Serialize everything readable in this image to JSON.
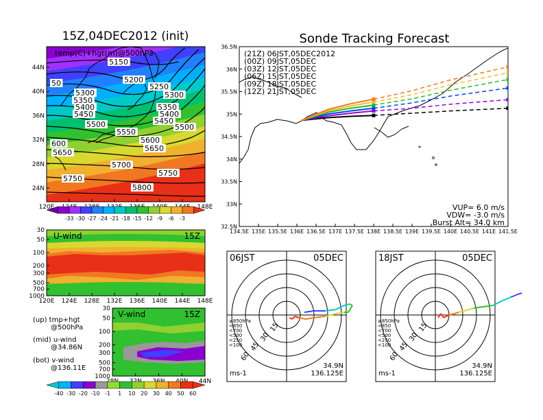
{
  "colors": {
    "shade": [
      "#6a00a8",
      "#8a00d0",
      "#a030ff",
      "#4040ff",
      "#2080ff",
      "#00b0ff",
      "#00c8c8",
      "#00c070",
      "#30c030",
      "#90d030",
      "#d8d830",
      "#f0b030",
      "#f07820",
      "#e83018"
    ],
    "wind_shade": [
      "#00c8c8",
      "#00b0ff",
      "#4040ff",
      "#8a00d0",
      "#999999",
      "#8fdc30",
      "#30c030",
      "#90d030",
      "#d8d830",
      "#f0b030",
      "#f07820",
      "#e83018"
    ],
    "tracks": {
      "21Z": "#000000",
      "00Z": "#9900cc",
      "03Z": "#0044ff",
      "06Z": "#22bb22",
      "09Z": "#f0c020",
      "12Z": "#f07820"
    }
  },
  "panels": {
    "init_title": "15Z,04DEC2012 (init)",
    "map_label": "temp(C)+hgt(m)@500hPa",
    "u_label": "U-wind",
    "u_time": "15Z",
    "v_label": "V-wind",
    "v_time": "15Z",
    "forecast_title": "Sonde Tracking Forecast",
    "legend_title": "(21Z) 06JST,05DEC2012",
    "legend_rows": [
      {
        "key": "00Z",
        "text": "(00Z) 09JST,05DEC"
      },
      {
        "key": "03Z",
        "text": "(03Z) 12JST,05DEC"
      },
      {
        "key": "06Z",
        "text": "(06Z) 15JST,05DEC"
      },
      {
        "key": "09Z",
        "text": "(09Z) 18JST,05DEC"
      },
      {
        "key": "12Z",
        "text": "(12Z) 21JST,05DEC"
      }
    ],
    "vup": "VUP= 6.0 m/s",
    "vdw": "VDW= -3.0 m/s",
    "burst": "Burst Alt= 34.0 km",
    "notes": [
      "(up) tmp+hgt",
      "@500hPa",
      "(mid) u-wind",
      "@34.86N",
      "(bot) v-wind",
      "@136.11E"
    ],
    "hodo_left": {
      "time": "06JST",
      "date": "05DEC",
      "lat": "34.9N",
      "lon": "136.125E",
      "unit": "ms-1"
    },
    "hodo_right": {
      "time": "18JST",
      "date": "05DEC",
      "lat": "34.9N",
      "lon": "136.125E",
      "unit": "ms-1"
    },
    "hodo_legend": [
      "≥850hPa",
      "<850",
      "<700",
      "<500",
      "<250",
      "<100"
    ],
    "ring_labels": [
      "15",
      "30",
      "45",
      "60"
    ]
  },
  "chart_data": [
    {
      "type": "heatmap",
      "title": "15Z,04DEC2012 (init)",
      "subtitle": "temp(C)+hgt(m)@500hPa",
      "x_ticks": [
        "120E",
        "124E",
        "128E",
        "132E",
        "136E",
        "140E",
        "144E",
        "148E"
      ],
      "y_ticks": [
        "24N",
        "28N",
        "32N",
        "36N",
        "40N",
        "44N"
      ],
      "colorbar_ticks": [
        "-33",
        "-30",
        "-27",
        "-24",
        "-21",
        "-18",
        "-15",
        "-12",
        "-9",
        "-6",
        "-3"
      ],
      "contour_labels": [
        "5150",
        "5200",
        "50",
        "5250",
        "5300",
        "5300",
        "5350",
        "5350",
        "5400",
        "5400",
        "5450",
        "5450",
        "5500",
        "5500",
        "5550",
        "5600",
        "600",
        "5650",
        "5650",
        "5700",
        "5750",
        "5750",
        "5800"
      ]
    },
    {
      "type": "heatmap",
      "title": "U-wind",
      "x_ticks": [
        "120E",
        "124E",
        "128E",
        "132E",
        "136E",
        "140E",
        "144E",
        "148E"
      ],
      "y_ticks": [
        "30",
        "50",
        "100",
        "200",
        "300",
        "500",
        "700",
        "1000"
      ]
    },
    {
      "type": "heatmap",
      "title": "V-wind",
      "x_ticks": [
        "28N",
        "32N",
        "36N",
        "40N",
        "44N"
      ],
      "y_ticks": [
        "30",
        "50",
        "100",
        "200",
        "300",
        "500",
        "700",
        "1000"
      ],
      "colorbar_ticks": [
        "-40",
        "-30",
        "-20",
        "-10",
        "-1",
        "1",
        "10",
        "20",
        "30",
        "40",
        "50",
        "60"
      ]
    },
    {
      "type": "line",
      "title": "Sonde Tracking Forecast",
      "x_ticks": [
        "134.5E",
        "135E",
        "135.5E",
        "136E",
        "136.5E",
        "137E",
        "137.5E",
        "138E",
        "138.5E",
        "139E",
        "139.5E",
        "140E",
        "140.5E",
        "141E",
        "141.5E"
      ],
      "y_ticks": [
        "32.5N",
        "33N",
        "33.5N",
        "34N",
        "34.5N",
        "35N",
        "35.5N",
        "36N",
        "36.5N"
      ],
      "xlim": [
        134.5,
        141.5
      ],
      "ylim": [
        32.5,
        36.5
      ],
      "series": [
        {
          "name": "(21Z) 06JST,05DEC2012",
          "key": "21Z",
          "points": [
            [
              136.12,
              34.86
            ],
            [
              136.8,
              34.92
            ],
            [
              137.4,
              34.95
            ],
            [
              138.0,
              34.97
            ],
            [
              139.0,
              35.02
            ],
            [
              140.0,
              35.07
            ],
            [
              141.5,
              35.13
            ]
          ]
        },
        {
          "name": "(00Z) 09JST,05DEC",
          "key": "00Z",
          "points": [
            [
              136.12,
              34.86
            ],
            [
              136.8,
              34.96
            ],
            [
              137.4,
              35.02
            ],
            [
              138.0,
              35.07
            ],
            [
              139.0,
              35.13
            ],
            [
              140.0,
              35.22
            ],
            [
              141.5,
              35.32
            ]
          ]
        },
        {
          "name": "(03Z) 12JST,05DEC",
          "key": "03Z",
          "points": [
            [
              136.12,
              34.86
            ],
            [
              136.8,
              35.0
            ],
            [
              137.4,
              35.07
            ],
            [
              138.0,
              35.13
            ],
            [
              139.0,
              35.25
            ],
            [
              140.0,
              35.4
            ],
            [
              141.5,
              35.58
            ]
          ]
        },
        {
          "name": "(06Z) 15JST,05DEC",
          "key": "06Z",
          "points": [
            [
              136.12,
              34.86
            ],
            [
              136.8,
              35.04
            ],
            [
              137.4,
              35.13
            ],
            [
              138.0,
              35.2
            ],
            [
              139.0,
              35.34
            ],
            [
              140.0,
              35.53
            ],
            [
              141.5,
              35.77
            ]
          ]
        },
        {
          "name": "(09Z) 18JST,05DEC",
          "key": "09Z",
          "points": [
            [
              136.12,
              34.86
            ],
            [
              136.8,
              35.07
            ],
            [
              137.4,
              35.18
            ],
            [
              138.0,
              35.27
            ],
            [
              139.0,
              35.43
            ],
            [
              140.0,
              35.65
            ],
            [
              141.5,
              35.92
            ]
          ]
        },
        {
          "name": "(12Z) 21JST,05DEC",
          "key": "12Z",
          "points": [
            [
              136.12,
              34.86
            ],
            [
              136.8,
              35.1
            ],
            [
              137.4,
              35.23
            ],
            [
              138.0,
              35.33
            ],
            [
              139.0,
              35.52
            ],
            [
              140.0,
              35.76
            ],
            [
              141.5,
              36.05
            ]
          ]
        }
      ]
    }
  ]
}
